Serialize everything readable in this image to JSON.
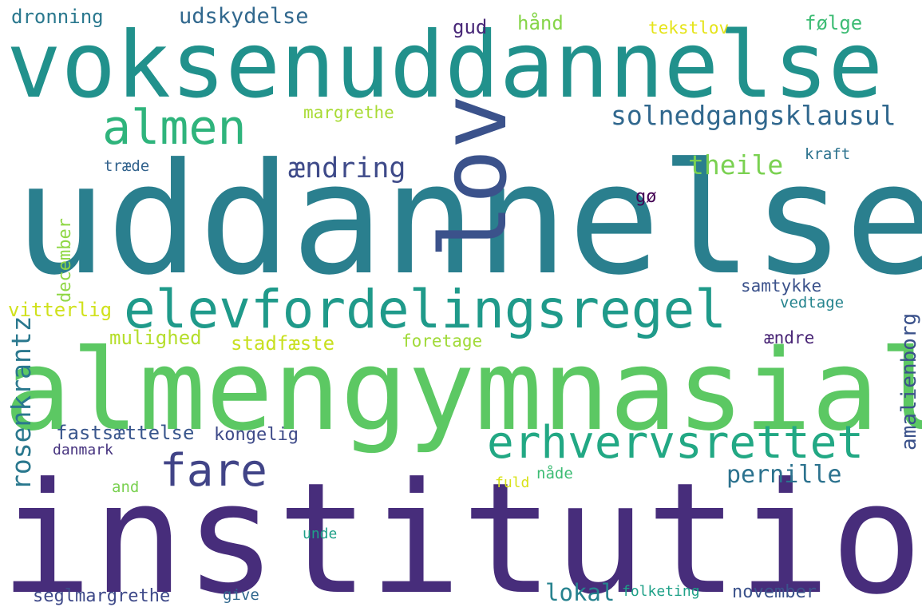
{
  "words": [
    {
      "text": "uddannelse",
      "color": "#2a7f8e"
    },
    {
      "text": "institution",
      "color": "#472d7b"
    },
    {
      "text": "almengymnasial",
      "color": "#5cc863"
    },
    {
      "text": "voksenuddannelse",
      "color": "#21918c"
    },
    {
      "text": "lov",
      "color": "#3b528b"
    },
    {
      "text": "elevfordelingsregel",
      "color": "#1f9a8a"
    },
    {
      "text": "erhvervsrettet",
      "color": "#22a884"
    },
    {
      "text": "almen",
      "color": "#2fb47c"
    },
    {
      "text": "fare",
      "color": "#414487"
    },
    {
      "text": "solnedgangsklausul",
      "color": "#31688e"
    },
    {
      "text": "ændring",
      "color": "#3e4a89"
    },
    {
      "text": "theile",
      "color": "#7ad151"
    },
    {
      "text": "pernille",
      "color": "#2c728e"
    },
    {
      "text": "lokal",
      "color": "#26828e"
    },
    {
      "text": "udskydelse",
      "color": "#31688e"
    },
    {
      "text": "rosenkrantz",
      "color": "#2a788e"
    },
    {
      "text": "amalienborg",
      "color": "#3b528b"
    },
    {
      "text": "december",
      "color": "#8fd744"
    },
    {
      "text": "dronning",
      "color": "#2a788e"
    },
    {
      "text": "følge",
      "color": "#3dbc74"
    },
    {
      "text": "hånd",
      "color": "#86d549"
    },
    {
      "text": "tekstlov",
      "color": "#e5e419"
    },
    {
      "text": "gud",
      "color": "#482878"
    },
    {
      "text": "margrethe",
      "color": "#a8db34"
    },
    {
      "text": "kraft",
      "color": "#2c728e"
    },
    {
      "text": "træde",
      "color": "#33638d"
    },
    {
      "text": "gø",
      "color": "#440154"
    },
    {
      "text": "samtykke",
      "color": "#3b528b"
    },
    {
      "text": "vedtage",
      "color": "#25848e"
    },
    {
      "text": "vitterlig",
      "color": "#d0e11c"
    },
    {
      "text": "mulighed",
      "color": "#b5de2b"
    },
    {
      "text": "stadfæste",
      "color": "#c8e020"
    },
    {
      "text": "foretage",
      "color": "#a0da39"
    },
    {
      "text": "ændre",
      "color": "#482475"
    },
    {
      "text": "fastsættelse",
      "color": "#39568c"
    },
    {
      "text": "kongelig",
      "color": "#3e4a89"
    },
    {
      "text": "danmark",
      "color": "#46337f"
    },
    {
      "text": "nåde",
      "color": "#3dbc74"
    },
    {
      "text": "and",
      "color": "#7ad151"
    },
    {
      "text": "fuld",
      "color": "#d8e219"
    },
    {
      "text": "unde",
      "color": "#1fa088"
    },
    {
      "text": "seglmargrethe",
      "color": "#3e4989"
    },
    {
      "text": "give",
      "color": "#31688e"
    },
    {
      "text": "folketing",
      "color": "#1fa188"
    },
    {
      "text": "november",
      "color": "#3b528b"
    }
  ]
}
